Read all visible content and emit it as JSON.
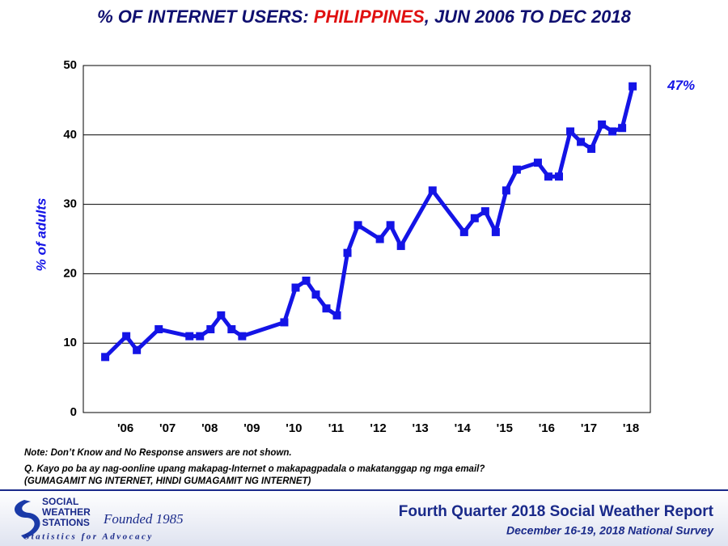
{
  "chart_data": {
    "type": "line",
    "title_parts": [
      "% OF INTERNET USERS: ",
      "PHILIPPINES",
      ", JUN 2006 TO DEC 2018"
    ],
    "y_label": "% of adults",
    "x": [
      2006.48,
      2006.98,
      2007.23,
      2007.75,
      2008.48,
      2008.73,
      2008.98,
      2009.23,
      2009.48,
      2009.73,
      2010.73,
      2011.0,
      2011.25,
      2011.48,
      2011.73,
      2011.98,
      2012.23,
      2012.48,
      2013.0,
      2013.25,
      2013.5,
      2014.25,
      2015.0,
      2015.25,
      2015.5,
      2015.75,
      2016.0,
      2016.25,
      2016.75,
      2017.0,
      2017.25,
      2017.52,
      2017.77,
      2018.02,
      2018.27,
      2018.52,
      2018.75,
      2019.0
    ],
    "series": [
      {
        "name": "Internet users",
        "color": "#1414e6",
        "values": [
          8,
          11,
          9,
          12,
          11,
          11,
          12,
          14,
          12,
          11,
          13,
          18,
          19,
          17,
          15,
          14,
          23,
          27,
          25,
          27,
          24,
          32,
          26,
          28,
          29,
          26,
          32,
          35,
          36,
          34,
          34,
          40.5,
          39,
          38,
          41.5,
          40.5,
          41,
          47
        ],
        "value_labels": [
          null,
          null,
          null,
          null,
          null,
          null,
          null,
          null,
          null,
          null,
          null,
          null,
          null,
          null,
          null,
          null,
          null,
          null,
          null,
          null,
          null,
          null,
          null,
          null,
          null,
          null,
          null,
          null,
          null,
          null,
          null,
          null,
          null,
          null,
          null,
          null,
          null,
          "47%"
        ]
      }
    ],
    "xlim": [
      2005.96,
      2019.42
    ],
    "xticks": [
      {
        "value": 2006.96,
        "label": "'06"
      },
      {
        "value": 2007.96,
        "label": "'07"
      },
      {
        "value": 2008.96,
        "label": "'08"
      },
      {
        "value": 2009.96,
        "label": "'09"
      },
      {
        "value": 2010.96,
        "label": "'10"
      },
      {
        "value": 2011.96,
        "label": "'11"
      },
      {
        "value": 2012.96,
        "label": "'12"
      },
      {
        "value": 2013.96,
        "label": "'13"
      },
      {
        "value": 2014.96,
        "label": "'14"
      },
      {
        "value": 2015.96,
        "label": "'15"
      },
      {
        "value": 2016.96,
        "label": "'16"
      },
      {
        "value": 2017.96,
        "label": "'17"
      },
      {
        "value": 2018.96,
        "label": "'18"
      }
    ],
    "ylim": [
      0,
      50
    ],
    "yticks": [
      0,
      10,
      20,
      30,
      40,
      50
    ],
    "grid": true
  },
  "notes": {
    "note": "Note: Don’t Know and No Response answers are not shown.",
    "question": "Q. Kayo po ba ay nag-oonline upang makapag-Internet o makapagpadala o makatanggap ng mga email?",
    "options": "(GUMAGAMIT NG INTERNET, HINDI GUMAGAMIT NG INTERNET)"
  },
  "footer": {
    "logo": [
      "SOCIAL",
      "WEATHER",
      "STATIONS"
    ],
    "founded": "Founded 1985",
    "tagline": "Statistics for Advocacy",
    "report": "Fourth Quarter 2018 Social Weather Report",
    "survey": "December 16-19, 2018 National Survey"
  }
}
